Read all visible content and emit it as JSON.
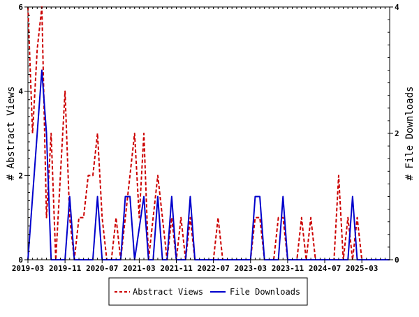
{
  "chart_data": {
    "type": "line",
    "ylabel": "# Abstract Views",
    "y2label": "# File Downloads",
    "ylim": [
      0,
      6
    ],
    "y2lim": [
      0,
      4
    ],
    "xlim_index": [
      0,
      78
    ],
    "x_tick_labels": [
      {
        "index": 0,
        "label": "2019-03"
      },
      {
        "index": 8,
        "label": "2019-11"
      },
      {
        "index": 16,
        "label": "2020-07"
      },
      {
        "index": 24,
        "label": "2021-03"
      },
      {
        "index": 32,
        "label": "2021-11"
      },
      {
        "index": 40,
        "label": "2022-07"
      },
      {
        "index": 48,
        "label": "2023-03"
      },
      {
        "index": 56,
        "label": "2023-11"
      },
      {
        "index": 64,
        "label": "2024-07"
      },
      {
        "index": 72,
        "label": "2025-03"
      }
    ],
    "y_ticks": [
      0,
      2,
      4,
      6
    ],
    "y2_ticks": [
      0,
      2,
      4
    ],
    "grid": false,
    "legend_position": "bottom",
    "series": [
      {
        "name": "Abstract Views",
        "axis": "left",
        "color": "#cc0000",
        "style": "dashed",
        "points": [
          [
            0,
            6
          ],
          [
            1,
            3
          ],
          [
            2,
            5
          ],
          [
            3,
            6
          ],
          [
            4,
            1
          ],
          [
            5,
            3
          ],
          [
            6,
            0
          ],
          [
            7,
            2
          ],
          [
            8,
            4
          ],
          [
            9,
            1
          ],
          [
            10,
            0
          ],
          [
            11,
            1
          ],
          [
            12,
            1
          ],
          [
            13,
            2
          ],
          [
            14,
            2
          ],
          [
            15,
            3
          ],
          [
            16,
            1
          ],
          [
            17,
            0
          ],
          [
            18,
            0
          ],
          [
            19,
            1
          ],
          [
            20,
            0
          ],
          [
            21,
            1
          ],
          [
            22,
            2
          ],
          [
            23,
            3
          ],
          [
            24,
            1
          ],
          [
            25,
            3
          ],
          [
            26,
            0
          ],
          [
            27,
            1
          ],
          [
            28,
            2
          ],
          [
            29,
            1
          ],
          [
            30,
            0
          ],
          [
            31,
            1
          ],
          [
            32,
            0
          ],
          [
            33,
            1
          ],
          [
            34,
            0
          ],
          [
            35,
            1
          ],
          [
            36,
            0
          ],
          [
            37,
            0
          ],
          [
            38,
            0
          ],
          [
            39,
            0
          ],
          [
            40,
            0
          ],
          [
            41,
            1
          ],
          [
            42,
            0
          ],
          [
            43,
            0
          ],
          [
            44,
            0
          ],
          [
            45,
            0
          ],
          [
            46,
            0
          ],
          [
            47,
            0
          ],
          [
            48,
            0
          ],
          [
            49,
            1
          ],
          [
            50,
            1
          ],
          [
            51,
            0
          ],
          [
            52,
            0
          ],
          [
            53,
            0
          ],
          [
            54,
            1
          ],
          [
            55,
            1
          ],
          [
            56,
            0
          ],
          [
            57,
            0
          ],
          [
            58,
            0
          ],
          [
            59,
            1
          ],
          [
            60,
            0
          ],
          [
            61,
            1
          ],
          [
            62,
            0
          ],
          [
            63,
            0
          ],
          [
            64,
            0
          ],
          [
            65,
            0
          ],
          [
            66,
            0
          ],
          [
            67,
            2
          ],
          [
            68,
            0
          ],
          [
            69,
            1
          ],
          [
            70,
            0
          ],
          [
            71,
            1
          ],
          [
            72,
            0
          ],
          [
            73,
            0
          ],
          [
            74,
            0
          ],
          [
            75,
            0
          ],
          [
            76,
            0
          ],
          [
            77,
            0
          ],
          [
            78,
            0
          ]
        ]
      },
      {
        "name": "File Downloads",
        "axis": "right",
        "color": "#0000cc",
        "style": "solid",
        "points": [
          [
            0,
            0
          ],
          [
            2,
            2
          ],
          [
            3,
            3
          ],
          [
            4,
            2
          ],
          [
            5,
            0
          ],
          [
            8,
            0
          ],
          [
            9,
            1
          ],
          [
            10,
            0
          ],
          [
            14,
            0
          ],
          [
            15,
            1
          ],
          [
            16,
            0
          ],
          [
            20,
            0
          ],
          [
            21,
            1
          ],
          [
            22,
            1
          ],
          [
            23,
            0
          ],
          [
            25,
            1
          ],
          [
            26,
            0
          ],
          [
            27,
            0
          ],
          [
            28,
            1
          ],
          [
            29,
            0
          ],
          [
            30,
            0
          ],
          [
            31,
            1
          ],
          [
            32,
            0
          ],
          [
            34,
            0
          ],
          [
            35,
            1
          ],
          [
            36,
            0
          ],
          [
            48,
            0
          ],
          [
            49,
            1
          ],
          [
            50,
            1
          ],
          [
            51,
            0
          ],
          [
            54,
            0
          ],
          [
            55,
            1
          ],
          [
            56,
            0
          ],
          [
            69,
            0
          ],
          [
            70,
            1
          ],
          [
            71,
            0
          ],
          [
            78,
            0
          ]
        ]
      }
    ]
  }
}
